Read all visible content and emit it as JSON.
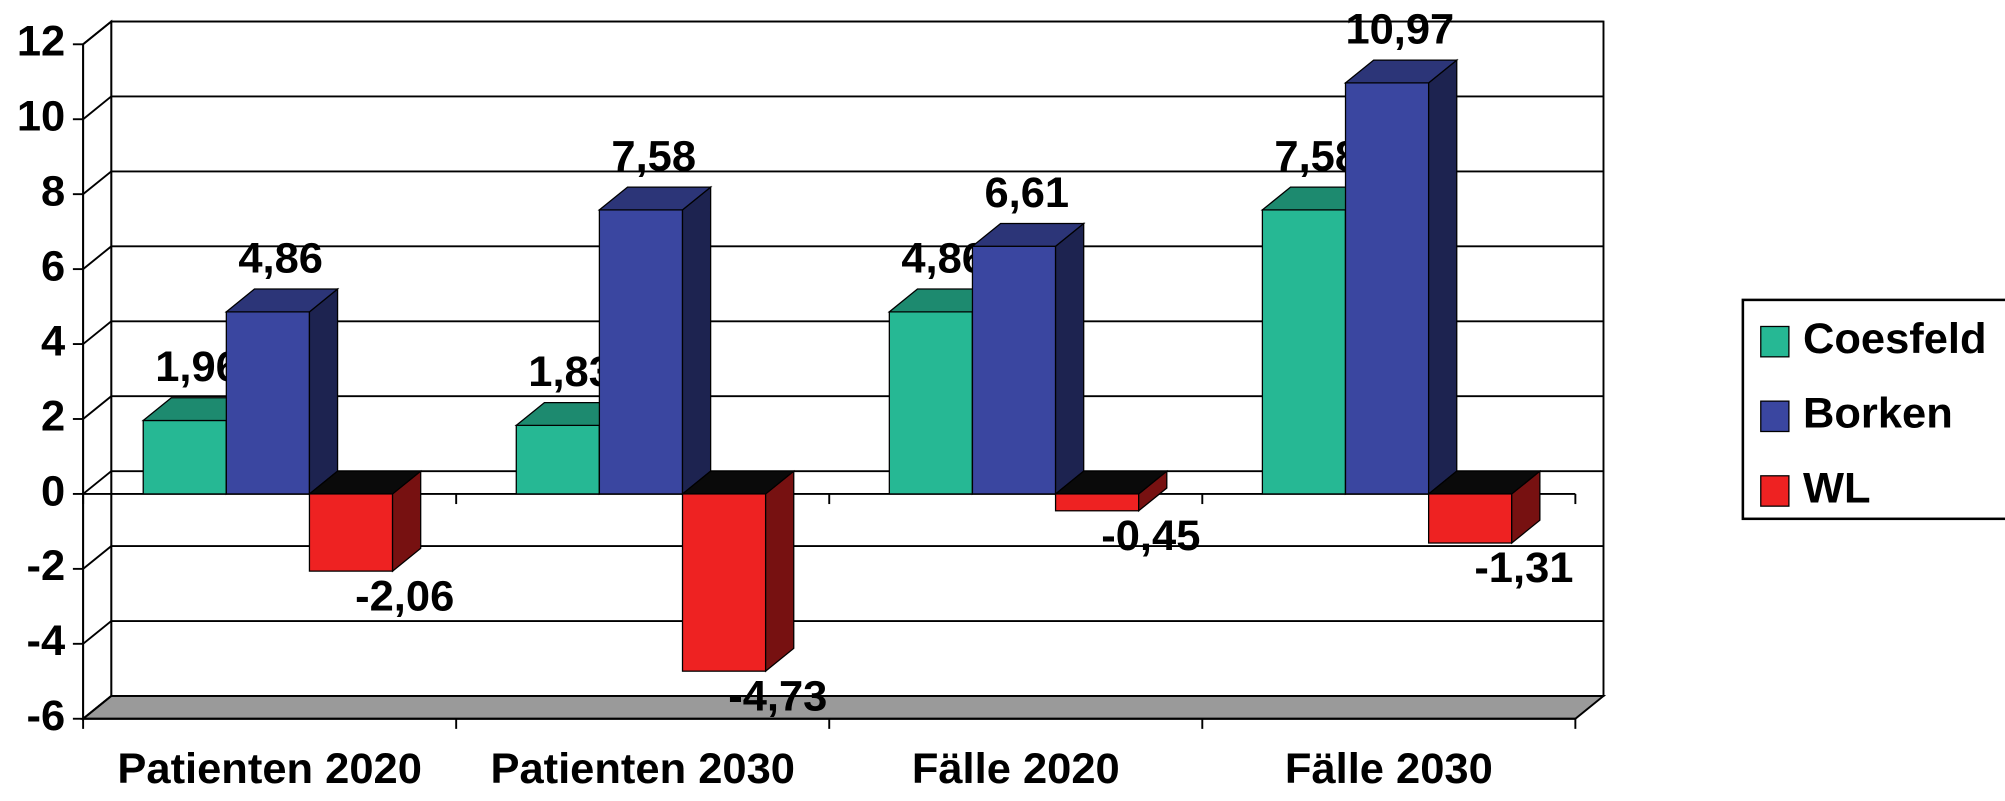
{
  "chart_data": {
    "type": "bar3d",
    "categories": [
      "Patienten 2020",
      "Patienten 2030",
      "Fälle 2020",
      "Fälle 2030"
    ],
    "series": [
      {
        "name": "Coesfeld",
        "color": "#26b894",
        "values": [
          1.96,
          1.83,
          4.86,
          7.58
        ],
        "value_labels": [
          "1,96",
          "1,83",
          "4,86",
          "7,58"
        ]
      },
      {
        "name": "Borken",
        "color": "#3a46a0",
        "values": [
          4.86,
          7.58,
          6.61,
          10.97
        ],
        "value_labels": [
          "4,86",
          "7,58",
          "6,61",
          "10,97"
        ]
      },
      {
        "name": "WL",
        "color": "#ee2222",
        "values": [
          -2.06,
          -4.73,
          -0.45,
          -1.31
        ],
        "value_labels": [
          "-2,06",
          "-4,73",
          "-0,45",
          "-1,31"
        ]
      }
    ],
    "ylim": [
      -6,
      12
    ],
    "yticks": [
      -6,
      -4,
      -2,
      0,
      2,
      4,
      6,
      8,
      10,
      12
    ],
    "grid": true,
    "legend": "right"
  }
}
